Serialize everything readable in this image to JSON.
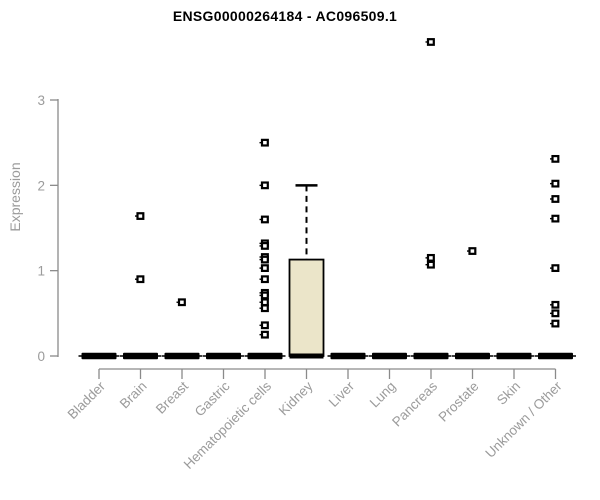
{
  "page": {
    "background": "#ffffff"
  },
  "chart_data": {
    "type": "boxplot",
    "title": "ENSG00000264184 - AC096509.1",
    "ylabel": "Expression",
    "xlabel": "",
    "ylim": [
      0,
      3
    ],
    "yticks": [
      0,
      1,
      2,
      3
    ],
    "grid": false,
    "legend": null,
    "x_tick_rotation": 45,
    "categories": [
      "Bladder",
      "Brain",
      "Breast",
      "Gastric",
      "Hematopoietic cells",
      "Kidney",
      "Liver",
      "Lung",
      "Pancreas",
      "Prostate",
      "Skin",
      "Unknown / Other"
    ],
    "series": [
      {
        "category": "Bladder",
        "q1": 0,
        "median": 0,
        "q3": 0,
        "whisker_low": 0,
        "whisker_high": 0,
        "outliers": []
      },
      {
        "category": "Brain",
        "q1": 0,
        "median": 0,
        "q3": 0,
        "whisker_low": 0,
        "whisker_high": 0,
        "outliers": [
          1.64,
          0.9
        ]
      },
      {
        "category": "Breast",
        "q1": 0,
        "median": 0,
        "q3": 0,
        "whisker_low": 0,
        "whisker_high": 0,
        "outliers": [
          0.63
        ]
      },
      {
        "category": "Gastric",
        "q1": 0,
        "median": 0,
        "q3": 0,
        "whisker_low": 0,
        "whisker_high": 0,
        "outliers": []
      },
      {
        "category": "Hematopoietic cells",
        "q1": 0,
        "median": 0,
        "q3": 0,
        "whisker_low": 0,
        "whisker_high": 0,
        "outliers": [
          2.5,
          2.0,
          1.6,
          1.32,
          1.29,
          1.16,
          1.13,
          1.03,
          0.9,
          0.74,
          0.71,
          0.63,
          0.56,
          0.36,
          0.25
        ]
      },
      {
        "category": "Kidney",
        "q1": 0,
        "median": 0,
        "q3": 1.13,
        "whisker_low": 0,
        "whisker_high": 2.0,
        "outliers": []
      },
      {
        "category": "Liver",
        "q1": 0,
        "median": 0,
        "q3": 0,
        "whisker_low": 0,
        "whisker_high": 0,
        "outliers": []
      },
      {
        "category": "Lung",
        "q1": 0,
        "median": 0,
        "q3": 0,
        "whisker_low": 0,
        "whisker_high": 0,
        "outliers": []
      },
      {
        "category": "Pancreas",
        "q1": 0,
        "median": 0,
        "q3": 0,
        "whisker_low": 0,
        "whisker_high": 0,
        "outliers": [
          3.68,
          1.15,
          1.07
        ]
      },
      {
        "category": "Prostate",
        "q1": 0,
        "median": 0,
        "q3": 0,
        "whisker_low": 0,
        "whisker_high": 0,
        "outliers": [
          1.23
        ]
      },
      {
        "category": "Skin",
        "q1": 0,
        "median": 0,
        "q3": 0,
        "whisker_low": 0,
        "whisker_high": 0,
        "outliers": []
      },
      {
        "category": "Unknown / Other",
        "q1": 0,
        "median": 0,
        "q3": 0,
        "whisker_low": 0,
        "whisker_high": 0,
        "outliers": [
          2.31,
          2.02,
          1.84,
          1.61,
          1.03,
          0.6,
          0.5,
          0.38
        ]
      }
    ],
    "colors": {
      "box_fill": "#ebe5c9",
      "box_border": "#000000",
      "median": "#000000",
      "outlier": "#000000",
      "axis": "#8a8a8a",
      "tick_label": "#9b9b9b",
      "title": "#000000",
      "background": "#ffffff"
    }
  }
}
